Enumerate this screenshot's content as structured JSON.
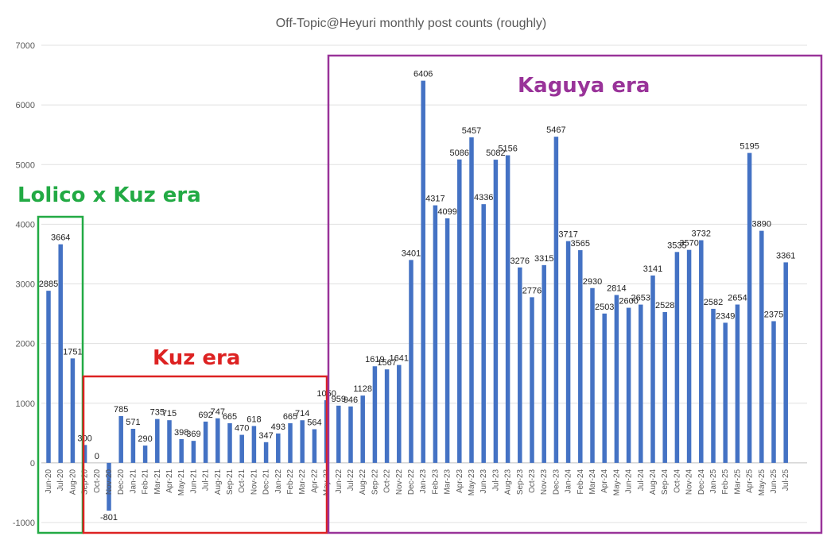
{
  "chart_data": {
    "type": "bar",
    "title": "Off-Topic@Heyuri monthly post counts (roughly)",
    "xlabel": "",
    "ylabel": "",
    "ylim": [
      -1000,
      7000
    ],
    "yticks": [
      -1000,
      0,
      1000,
      2000,
      3000,
      4000,
      5000,
      6000,
      7000
    ],
    "grid": true,
    "legend": "none",
    "bar_color": "#4472C4",
    "categories": [
      "Jun-20",
      "Jul-20",
      "Aug-20",
      "Sep-20",
      "Oct-20",
      "Nov-20",
      "Dec-20",
      "Jan-21",
      "Feb-21",
      "Mar-21",
      "Apr-21",
      "May-21",
      "Jun-21",
      "Jul-21",
      "Aug-21",
      "Sep-21",
      "Oct-21",
      "Nov-21",
      "Dec-21",
      "Jan-22",
      "Feb-22",
      "Mar-22",
      "Apr-22",
      "May-22",
      "Jun-22",
      "Jul-22",
      "Aug-22",
      "Sep-22",
      "Oct-22",
      "Nov-22",
      "Dec-22",
      "Jan-23",
      "Feb-23",
      "Mar-23",
      "Apr-23",
      "May-23",
      "Jun-23",
      "Jul-23",
      "Aug-23",
      "Sep-23",
      "Oct-23",
      "Nov-23",
      "Dec-23",
      "Jan-24",
      "Feb-24",
      "Mar-24",
      "Apr-24",
      "May-24",
      "Jun-24",
      "Jul-24",
      "Aug-24",
      "Sep-24",
      "Oct-24",
      "Nov-24",
      "Dec-24",
      "Jan-25",
      "Feb-25",
      "Mar-25",
      "Apr-25",
      "May-25",
      "Jun-25",
      "Jul-25"
    ],
    "values": [
      2885,
      3664,
      1751,
      300,
      0,
      -801,
      785,
      571,
      290,
      735,
      715,
      398,
      369,
      692,
      747,
      665,
      470,
      618,
      347,
      493,
      665,
      714,
      564,
      1050,
      959,
      946,
      1128,
      1619,
      1567,
      1641,
      3401,
      6406,
      4317,
      4099,
      5086,
      5457,
      4336,
      5082,
      5156,
      3276,
      2776,
      3315,
      5467,
      3717,
      3565,
      2930,
      2503,
      2814,
      2600,
      2653,
      3141,
      2528,
      3535,
      3570,
      3732,
      2582,
      2349,
      2654,
      5195,
      3890,
      2375,
      3361
    ],
    "annotations": [
      {
        "text": "Lolico x Kuz era",
        "from": "Jun-20",
        "to": "Aug-20",
        "color": "#22AA44"
      },
      {
        "text": "Kuz era",
        "from": "Sep-20",
        "to": "Apr-22",
        "color": "#DD2222"
      },
      {
        "text": "Kaguya era",
        "from": "May-22",
        "to": "Jul-25",
        "color": "#993399"
      }
    ]
  }
}
